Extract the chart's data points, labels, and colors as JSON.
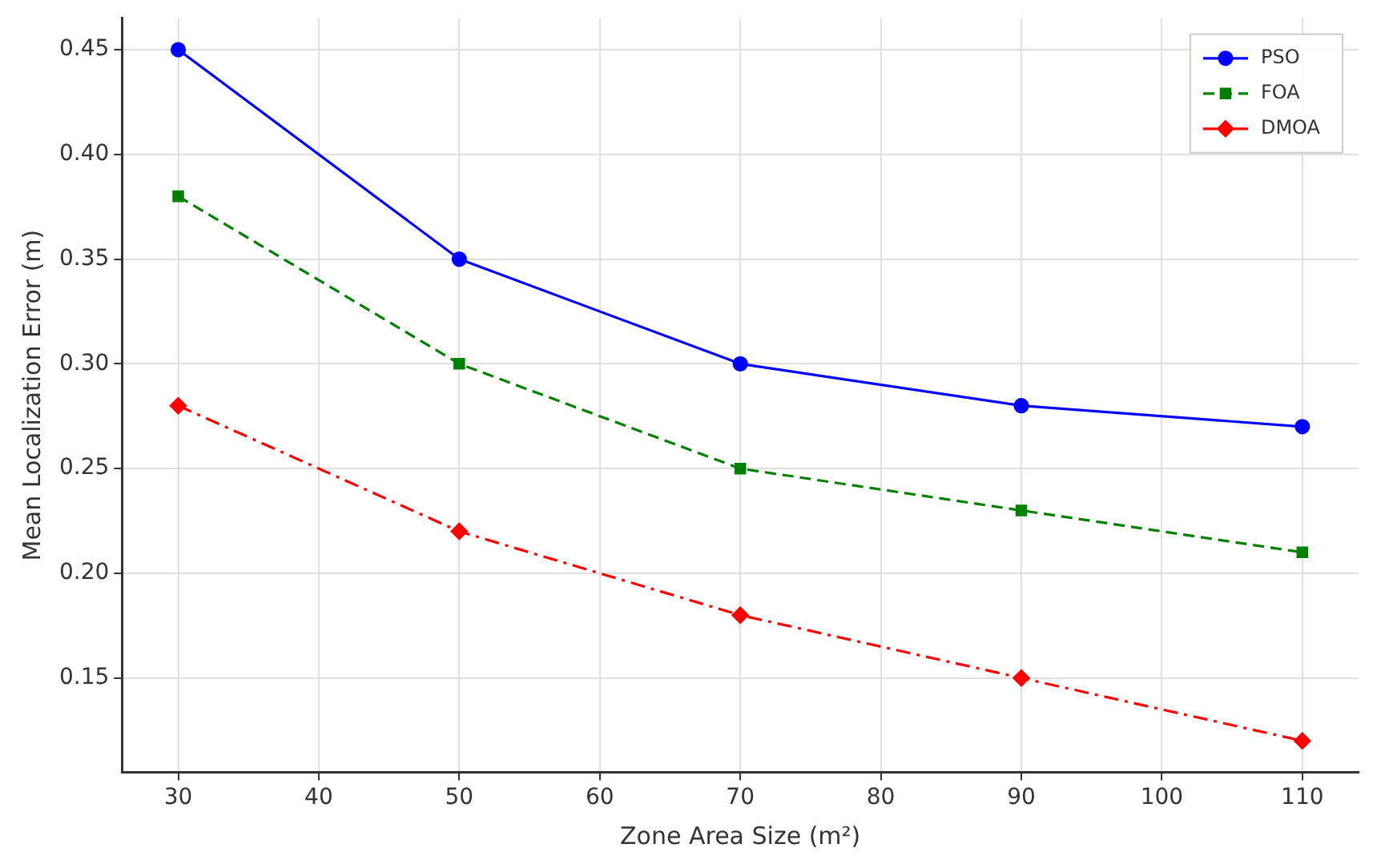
{
  "chart_data": {
    "type": "line",
    "xlabel": "Zone Area Size (m²)",
    "ylabel": "Mean Localization Error (m)",
    "x": [
      30,
      50,
      70,
      90,
      110
    ],
    "series": [
      {
        "name": "PSO",
        "color": "#0000ff",
        "values": [
          0.45,
          0.35,
          0.3,
          0.28,
          0.27
        ],
        "marker": "circle",
        "line_style": "solid"
      },
      {
        "name": "FOA",
        "color": "#008000",
        "values": [
          0.38,
          0.3,
          0.25,
          0.23,
          0.21
        ],
        "marker": "square",
        "line_style": "dashed"
      },
      {
        "name": "DMOA",
        "color": "#ff0000",
        "values": [
          0.28,
          0.22,
          0.18,
          0.15,
          0.12
        ],
        "marker": "diamond",
        "line_style": "dashdot"
      }
    ],
    "xlim": [
      26,
      114
    ],
    "xticks": [
      30,
      40,
      50,
      60,
      70,
      80,
      90,
      100,
      110
    ],
    "ylim": [
      0.105,
      0.465
    ],
    "yticks": [
      {
        "value": 0.15,
        "label": "0.15"
      },
      {
        "value": 0.2,
        "label": "0.20"
      },
      {
        "value": 0.25,
        "label": "0.25"
      },
      {
        "value": 0.3,
        "label": "0.30"
      },
      {
        "value": 0.35,
        "label": "0.35"
      },
      {
        "value": 0.4,
        "label": "0.40"
      },
      {
        "value": 0.45,
        "label": "0.45"
      }
    ],
    "grid": true,
    "legend": "top right"
  }
}
